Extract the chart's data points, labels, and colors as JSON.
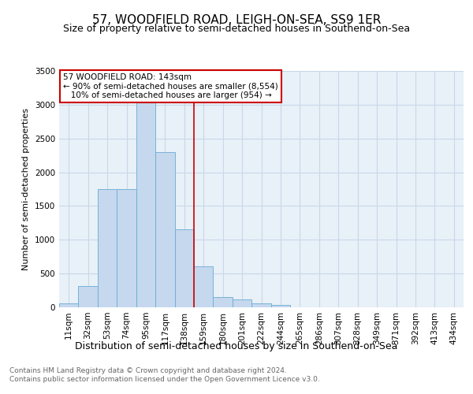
{
  "title": "57, WOODFIELD ROAD, LEIGH-ON-SEA, SS9 1ER",
  "subtitle": "Size of property relative to semi-detached houses in Southend-on-Sea",
  "xlabel": "Distribution of semi-detached houses by size in Southend-on-Sea",
  "ylabel": "Number of semi-detached properties",
  "footnote1": "Contains HM Land Registry data © Crown copyright and database right 2024.",
  "footnote2": "Contains public sector information licensed under the Open Government Licence v3.0.",
  "bar_labels": [
    "11sqm",
    "32sqm",
    "53sqm",
    "74sqm",
    "95sqm",
    "117sqm",
    "138sqm",
    "159sqm",
    "180sqm",
    "201sqm",
    "222sqm",
    "244sqm",
    "265sqm",
    "286sqm",
    "307sqm",
    "328sqm",
    "349sqm",
    "371sqm",
    "392sqm",
    "413sqm",
    "434sqm"
  ],
  "bar_values": [
    55,
    315,
    1750,
    1750,
    3050,
    2300,
    1150,
    610,
    150,
    115,
    60,
    30,
    0,
    0,
    0,
    0,
    0,
    0,
    0,
    0,
    0
  ],
  "bar_color": "#c5d8ee",
  "bar_edge_color": "#6aacd4",
  "grid_color": "#c8d8e8",
  "background_color": "#e8f0f8",
  "red_line_index": 6,
  "red_line_color": "#cc0000",
  "annotation_text": "57 WOODFIELD ROAD: 143sqm\n← 90% of semi-detached houses are smaller (8,554)\n   10% of semi-detached houses are larger (954) →",
  "annotation_box_color": "#cc0000",
  "ylim": [
    0,
    3500
  ],
  "yticks": [
    0,
    500,
    1000,
    1500,
    2000,
    2500,
    3000,
    3500
  ],
  "title_fontsize": 11,
  "subtitle_fontsize": 9,
  "xlabel_fontsize": 9,
  "ylabel_fontsize": 8,
  "tick_fontsize": 7.5,
  "footnote_fontsize": 6.5,
  "footnote_color": "#666666"
}
